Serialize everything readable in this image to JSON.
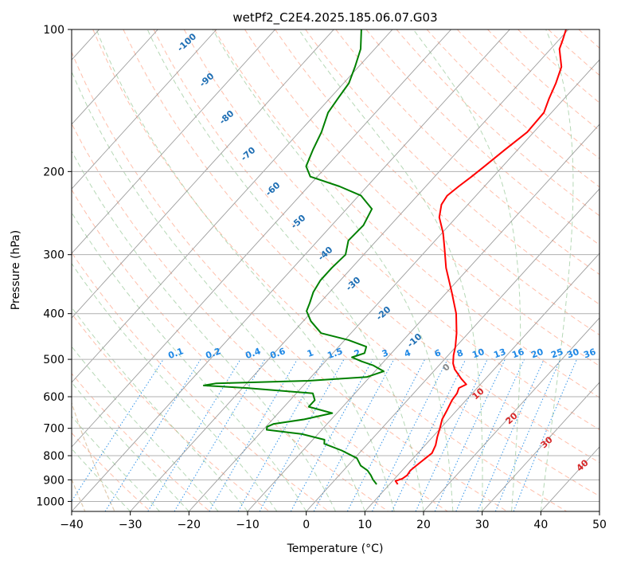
{
  "chart_data": {
    "type": "line",
    "subtype": "skew-T log-P diagram",
    "title": "wetPf2_C2E4.2025.185.06.07.G03",
    "xlabel": "Temperature (°C)",
    "ylabel": "Pressure (hPa)",
    "xlim": [
      -40,
      50
    ],
    "ylim": [
      1050,
      100
    ],
    "y_scale": "log",
    "grid": true,
    "x_ticks": [
      -40,
      -30,
      -20,
      -10,
      0,
      10,
      20,
      30,
      40,
      50
    ],
    "y_ticks": [
      100,
      200,
      300,
      400,
      500,
      600,
      700,
      800,
      900,
      1000
    ],
    "x_tick_labels": [
      "−40",
      "−30",
      "−20",
      "−10",
      "0",
      "10",
      "20",
      "30",
      "40",
      "50"
    ],
    "y_tick_labels": [
      "100",
      "200",
      "300",
      "400",
      "500",
      "600",
      "700",
      "800",
      "900",
      "1000"
    ],
    "series": [
      {
        "role": "temperature",
        "color": "#ff0000",
        "p": [
          920,
          905,
          895,
          880,
          860,
          830,
          790,
          760,
          730,
          700,
          670,
          640,
          610,
          590,
          575,
          565,
          550,
          525,
          510,
          500,
          490,
          470,
          440,
          400,
          360,
          320,
          290,
          270,
          250,
          235,
          225,
          215,
          205,
          195,
          180,
          165,
          150,
          140,
          130,
          120,
          110,
          105,
          100
        ],
        "t": [
          11.4,
          10.5,
          11.3,
          11.6,
          11.4,
          11.8,
          12.4,
          11.8,
          10.8,
          9.9,
          8.9,
          8.3,
          7.6,
          7.4,
          6.9,
          7.6,
          5.9,
          3.3,
          2.1,
          1.5,
          0.9,
          -0.1,
          -2.0,
          -5.1,
          -9.2,
          -13.9,
          -17.3,
          -19.8,
          -22.9,
          -24.5,
          -24.9,
          -24.4,
          -23.7,
          -23.1,
          -22.2,
          -21.1,
          -21.3,
          -22.6,
          -23.8,
          -25.4,
          -28.5,
          -29.4,
          -30.4
        ]
      },
      {
        "role": "dewpoint",
        "color": "#008000",
        "p": [
          920,
          900,
          880,
          860,
          840,
          810,
          780,
          755,
          740,
          720,
          705,
          695,
          685,
          670,
          650,
          630,
          610,
          590,
          575,
          568,
          562,
          555,
          545,
          530,
          515,
          505,
          495,
          485,
          470,
          455,
          440,
          415,
          395,
          380,
          360,
          340,
          320,
          300,
          280,
          260,
          240,
          225,
          215,
          205,
          195,
          180,
          165,
          150,
          140,
          130,
          120,
          110,
          100
        ],
        "t": [
          7.8,
          6.5,
          5.4,
          4.1,
          2.2,
          0.4,
          -3.4,
          -7.4,
          -8.0,
          -12.7,
          -19.4,
          -19.8,
          -19.1,
          -14.6,
          -10.8,
          -15.8,
          -15.8,
          -17.2,
          -29.2,
          -37.0,
          -35.2,
          -19.9,
          -10.5,
          -8.5,
          -11.2,
          -13.8,
          -16.1,
          -14.6,
          -15.3,
          -19.4,
          -25.1,
          -28.7,
          -31.0,
          -31.7,
          -32.8,
          -33.4,
          -33.4,
          -33.1,
          -34.8,
          -34.6,
          -35.7,
          -39.6,
          -44.7,
          -51.2,
          -53.5,
          -54.9,
          -56.2,
          -58.1,
          -58.6,
          -59.1,
          -60.6,
          -62.4,
          -65.3
        ]
      }
    ],
    "background": {
      "dry_adiabat_color": "#ff8a66",
      "moist_adiabat_color": "#7ab87a",
      "mixing_ratio_color": "#1e88e5",
      "isotherm_color": "#8c8c8c",
      "saturation_curve_color": "#c8a06e",
      "isotherm_labels": [
        "-100",
        "-90",
        "-80",
        "-70",
        "-60",
        "-50",
        "-40",
        "-30",
        "-20",
        "-10",
        "0",
        "10",
        "20",
        "30",
        "40"
      ],
      "mixing_ratio_labels": [
        "0.1",
        "0.2",
        "0.4",
        "0.6",
        "1",
        "1.5",
        "2",
        "3",
        "4",
        "6",
        "8",
        "10",
        "13",
        "16",
        "20",
        "25",
        "30",
        "36"
      ]
    }
  }
}
